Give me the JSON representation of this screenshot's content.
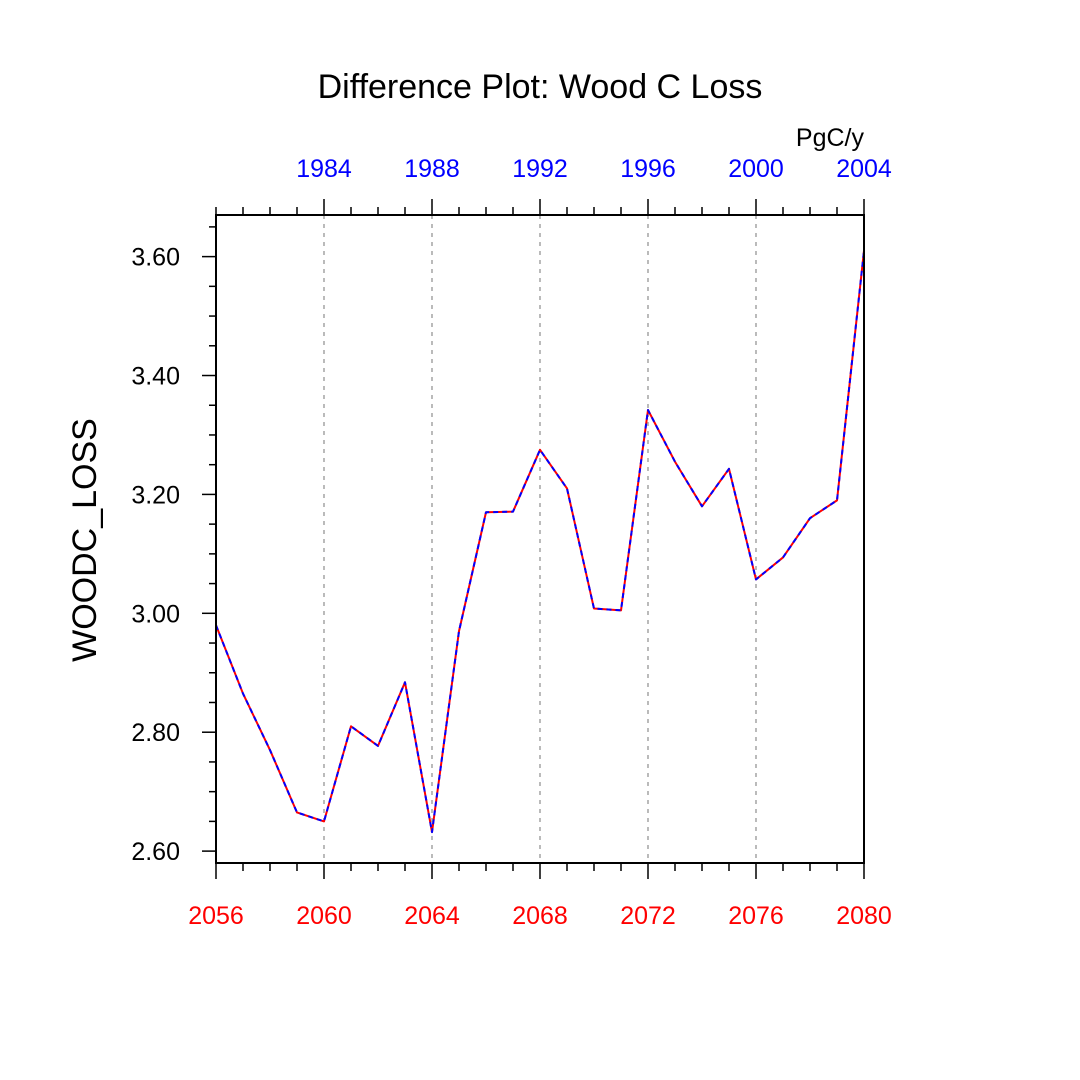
{
  "chart_data": {
    "type": "line",
    "title": "Difference Plot: Wood C Loss",
    "ylabel": "WOODC_LOSS",
    "units_label": "PgC/y",
    "ylim": [
      2.58,
      3.67
    ],
    "y_ticks": [
      "2.60",
      "2.80",
      "3.00",
      "3.20",
      "3.40",
      "3.60"
    ],
    "x_bottom": {
      "range": [
        2056,
        2080
      ],
      "ticks": [
        "2056",
        "2060",
        "2064",
        "2068",
        "2072",
        "2076",
        "2080"
      ],
      "color": "#ff0000"
    },
    "x_top": {
      "range": [
        1980,
        2004
      ],
      "ticks": [
        "1984",
        "1988",
        "1992",
        "1996",
        "2000",
        "2004"
      ],
      "color": "#0000ff"
    },
    "grid": "vertical dashed at bottom-axis major ticks",
    "series": [
      {
        "axis": "bottom",
        "color": "#ff0000",
        "x": [
          2056,
          2057,
          2058,
          2059,
          2060,
          2061,
          2062,
          2063,
          2064,
          2065,
          2066,
          2067,
          2068,
          2069,
          2070,
          2071,
          2072,
          2073,
          2074,
          2075,
          2076,
          2077,
          2078,
          2079,
          2080
        ],
        "values": [
          2.98,
          2.865,
          2.77,
          2.665,
          2.65,
          2.81,
          2.777,
          2.884,
          2.632,
          2.97,
          3.17,
          3.171,
          3.275,
          3.21,
          3.008,
          3.005,
          3.342,
          3.255,
          3.18,
          3.243,
          3.057,
          3.094,
          3.16,
          3.19,
          3.61
        ]
      },
      {
        "axis": "top",
        "color": "#0000ff",
        "x": [
          1980,
          1981,
          1982,
          1983,
          1984,
          1985,
          1986,
          1987,
          1988,
          1989,
          1990,
          1991,
          1992,
          1993,
          1994,
          1995,
          1996,
          1997,
          1998,
          1999,
          2000,
          2001,
          2002,
          2003,
          2004
        ],
        "values": [
          2.98,
          2.865,
          2.77,
          2.665,
          2.65,
          2.81,
          2.777,
          2.884,
          2.632,
          2.97,
          3.17,
          3.171,
          3.275,
          3.21,
          3.008,
          3.005,
          3.342,
          3.255,
          3.18,
          3.243,
          3.057,
          3.094,
          3.16,
          3.19,
          3.61
        ]
      }
    ]
  }
}
